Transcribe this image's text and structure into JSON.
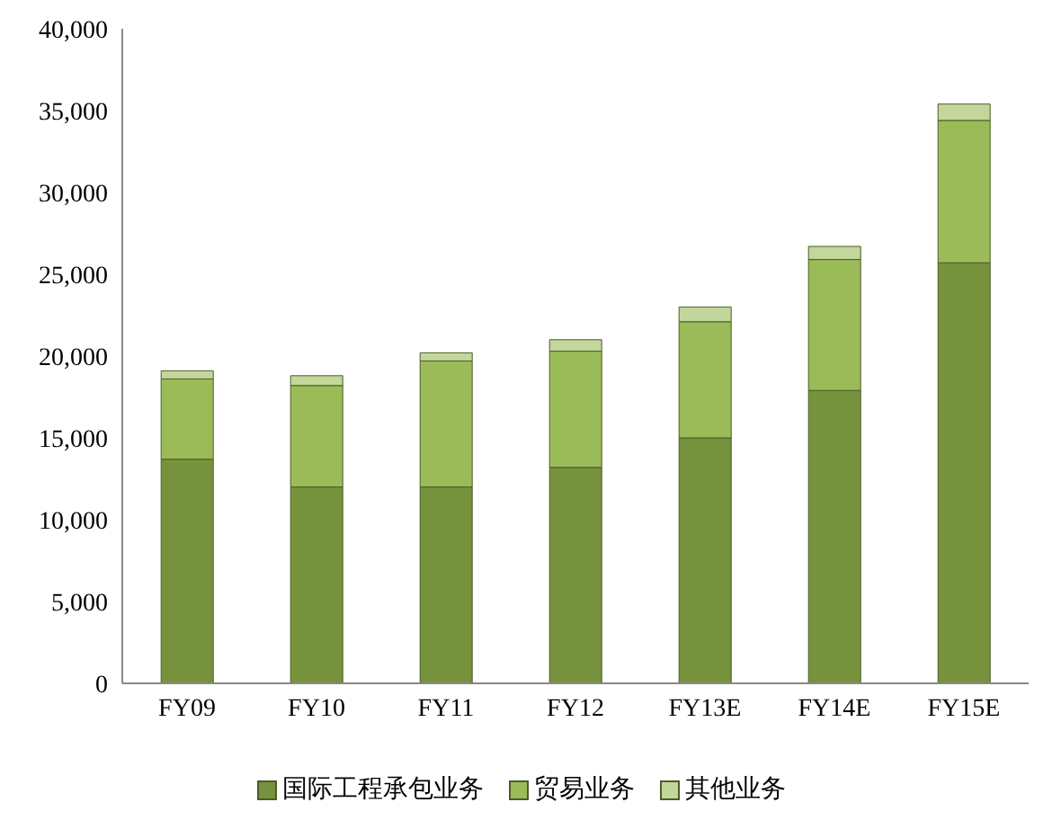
{
  "chart_data": {
    "type": "bar",
    "stacked": true,
    "categories": [
      "FY09",
      "FY10",
      "FY11",
      "FY12",
      "FY13E",
      "FY14E",
      "FY15E"
    ],
    "series": [
      {
        "name": "国际工程承包业务",
        "color": "#76923c",
        "values": [
          13700,
          12000,
          12000,
          13200,
          15000,
          17900,
          25700
        ]
      },
      {
        "name": "贸易业务",
        "color": "#9bbb59",
        "values": [
          4900,
          6200,
          7700,
          7100,
          7100,
          8000,
          8700
        ]
      },
      {
        "name": "其他业务",
        "color": "#c3d69b",
        "values": [
          500,
          600,
          500,
          700,
          900,
          800,
          1000
        ]
      }
    ],
    "ylim": [
      0,
      40000
    ],
    "yticks": [
      0,
      {
        "value": 5000,
        "label": "5,000"
      },
      {
        "value": 10000,
        "label": "10,000"
      },
      {
        "value": 15000,
        "label": "15,000"
      },
      {
        "value": 20000,
        "label": "20,000"
      },
      {
        "value": 25000,
        "label": "25,000"
      },
      {
        "value": 30000,
        "label": "30,000"
      },
      {
        "value": 35000,
        "label": "35,000"
      },
      {
        "value": 40000,
        "label": "40,000"
      }
    ],
    "grid": false,
    "legend": "bottom"
  }
}
